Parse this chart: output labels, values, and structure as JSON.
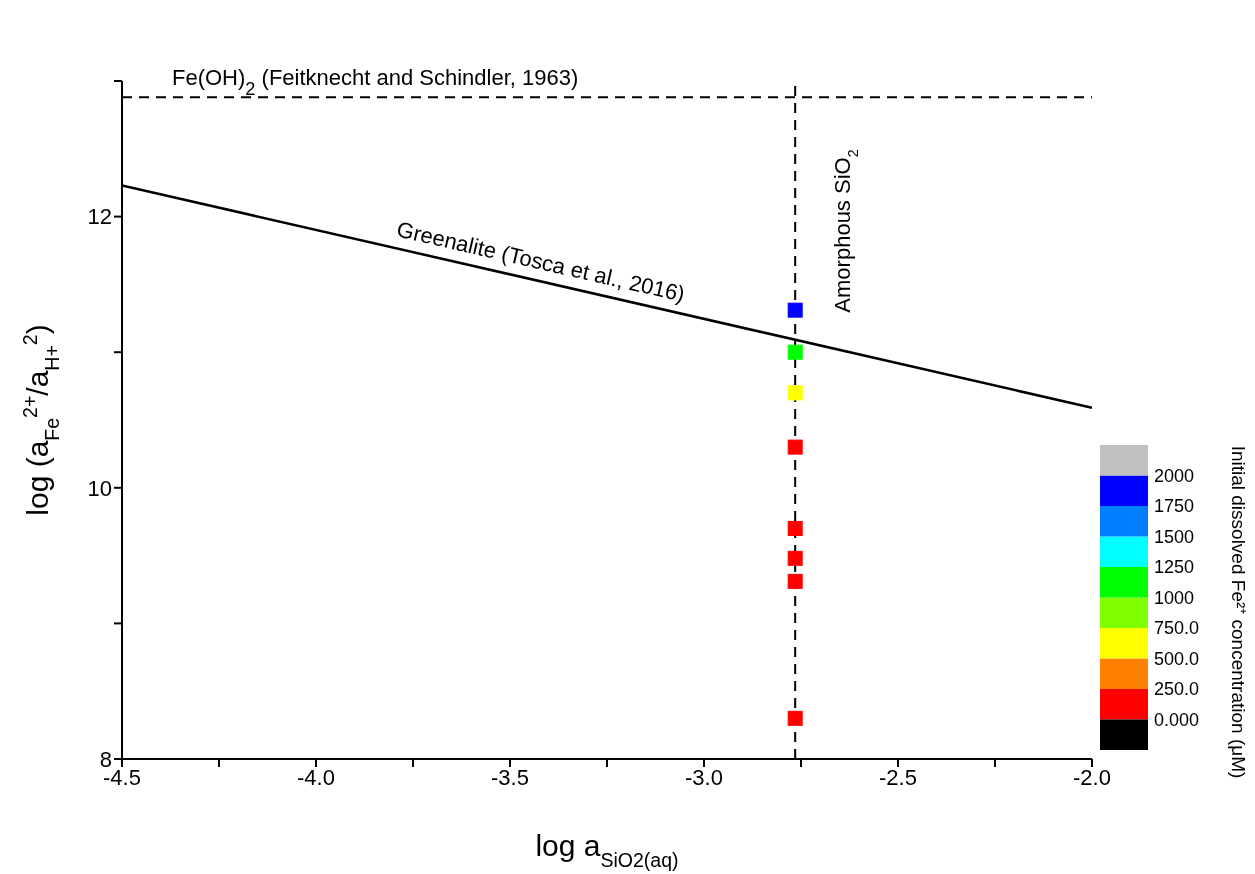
{
  "chart_data": {
    "type": "scatter",
    "xlabel": "log a$_{SiO2(aq)}$",
    "ylabel": "log (a$_{Fe}$$^{2+}$/a$_{H+}$$^{2}$)",
    "clabel": "Initial dissolved Fe²⁺ concentration (μM)",
    "xlim": [
      -4.5,
      -2.0
    ],
    "xticks": [
      -4.5,
      {
        "value": -4.25,
        "label": null
      },
      {
        "value": -4.0,
        "label": "-4.0"
      },
      {
        "value": -3.75,
        "label": null
      },
      -3.5,
      {
        "value": -3.25,
        "label": null
      },
      {
        "value": -3.0,
        "label": "-3.0"
      },
      {
        "value": -2.75,
        "label": null
      },
      -2.5,
      {
        "value": -2.25,
        "label": null
      },
      {
        "value": -2.0,
        "label": "-2.0"
      }
    ],
    "ylim": [
      8,
      13
    ],
    "yticks": [
      8,
      {
        "value": 9,
        "label": null
      },
      10,
      {
        "value": 11,
        "label": null
      },
      12,
      {
        "value": 13,
        "label": null
      }
    ],
    "clim": [
      0,
      2000
    ],
    "cticks": [
      {
        "value": 0,
        "label": "0.000"
      },
      {
        "value": 250,
        "label": "250.0"
      },
      {
        "value": 500,
        "label": "500.0"
      },
      {
        "value": 750,
        "label": "750.0"
      },
      1000,
      1250,
      1500,
      1750,
      2000
    ],
    "series": [
      {
        "type": "line",
        "name": "Greenalite (Tosca et al., 2016)",
        "color": "#000000",
        "marker": "none",
        "x": [
          -4.5,
          -2.0
        ],
        "values": [
          12.23,
          10.59
        ]
      },
      {
        "type": "scatter",
        "marker": "square",
        "x": [
          -2.765,
          -2.765,
          -2.765,
          -2.765,
          -2.765,
          -2.765,
          -2.765,
          -2.765
        ],
        "values": [
          11.31,
          11.0,
          10.7,
          10.3,
          9.7,
          9.48,
          9.31,
          8.3
        ],
        "colors": [
          "#0000ff",
          "#00ff00",
          "#ffff00",
          "#ff0000",
          "#ff0000",
          "#ff0000",
          "#ff0000",
          "#ff0000"
        ]
      }
    ],
    "ref_lines": [
      {
        "axis": "y",
        "value": 12.88,
        "label": "Fe(OH)$_{2}$ (Feitknecht and Schindler, 1963)",
        "color": "#000000",
        "line_style": "dashed"
      },
      {
        "axis": "x",
        "value": -2.765,
        "label": "Amorphous SiO$_{2}$",
        "color": "#000000",
        "line_style": "dashed"
      }
    ]
  }
}
